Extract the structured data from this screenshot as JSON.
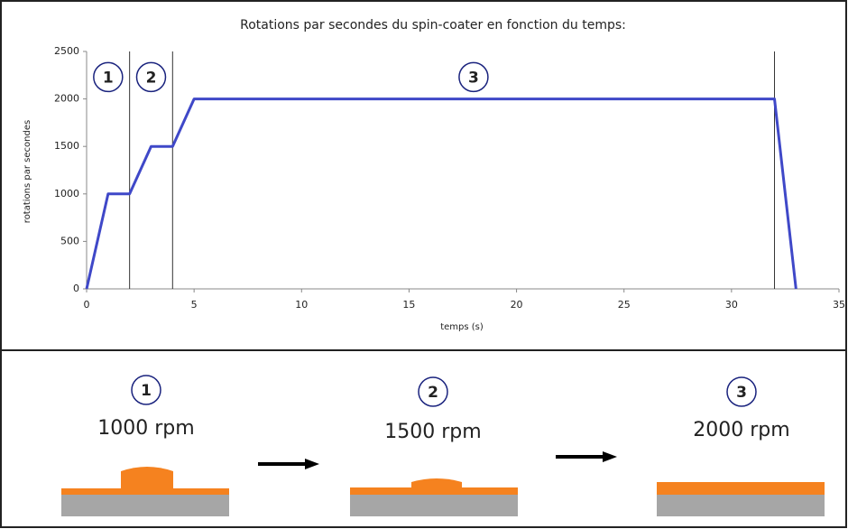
{
  "chart_data": {
    "type": "line",
    "title": "Rotations par secondes du spin-coater en fonction du temps:",
    "x_label": "temps (s)",
    "y_label": "rotations par secondes",
    "x": [
      0,
      1,
      2,
      3,
      4,
      5,
      32,
      33
    ],
    "series": [
      {
        "color": "#3f48c8",
        "values": [
          0,
          1000,
          1000,
          1500,
          1500,
          2000,
          2000,
          0
        ]
      }
    ],
    "xlim": [
      0,
      35
    ],
    "xticks": [
      0,
      5,
      10,
      15,
      20,
      25,
      30,
      35
    ],
    "ylim": [
      0,
      2500
    ],
    "yticks": [
      0,
      500,
      1000,
      1500,
      2000,
      2500
    ],
    "vlines": [
      2,
      4,
      32
    ],
    "phase_labels": [
      "1",
      "2",
      "3"
    ]
  },
  "steps": [
    {
      "number": "1",
      "label": "1000 rpm"
    },
    {
      "number": "2",
      "label": "1500 rpm"
    },
    {
      "number": "3",
      "label": "2000 rpm"
    }
  ]
}
